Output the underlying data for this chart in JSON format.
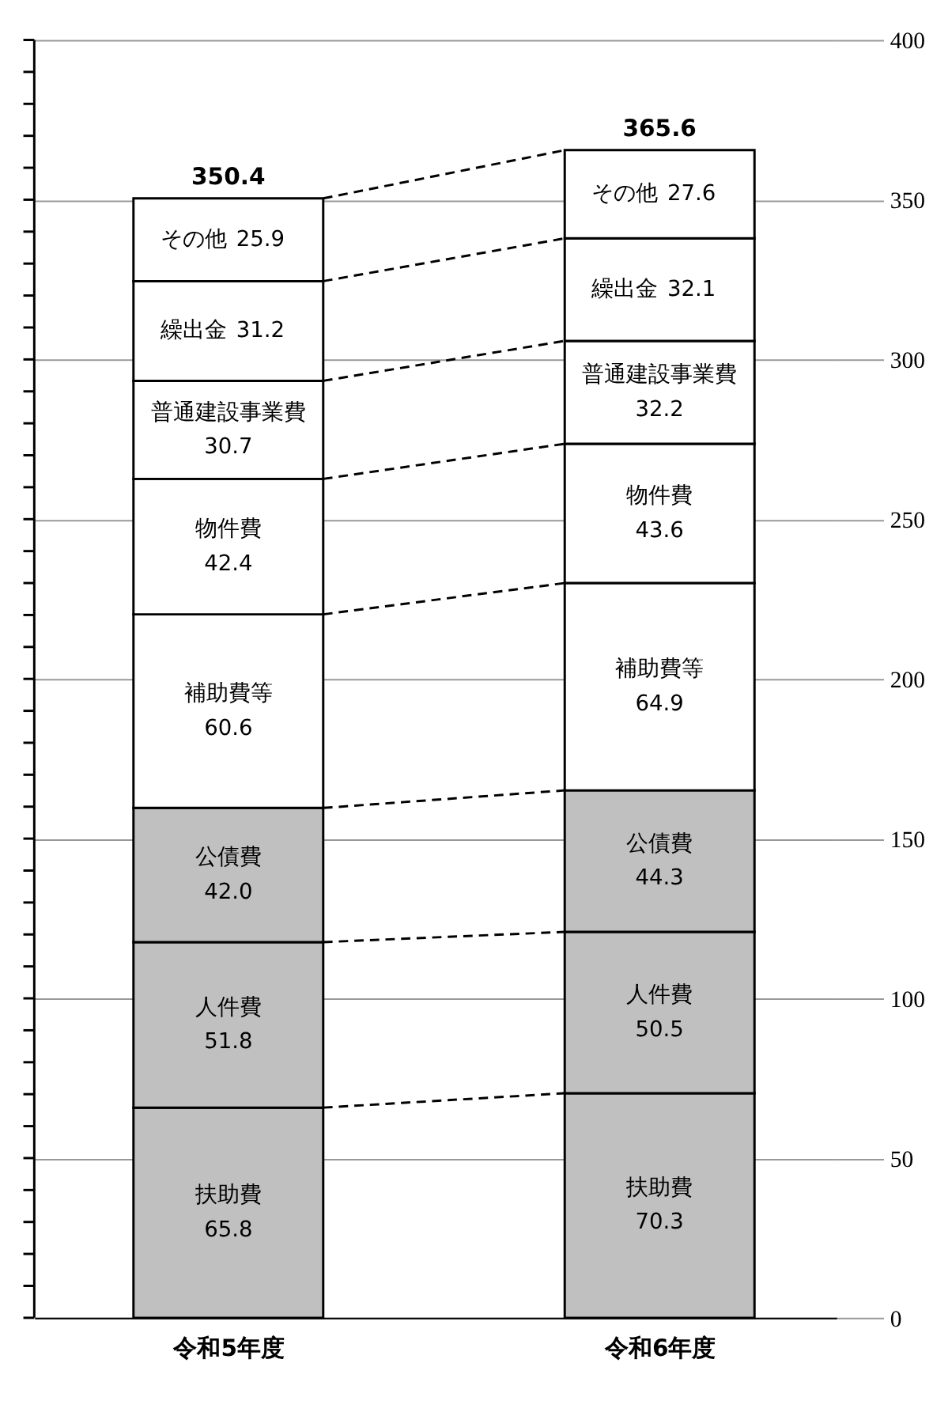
{
  "chart_data": {
    "type": "bar",
    "stacked": true,
    "grid": "y",
    "categories": [
      "令和5年度",
      "令和6年度"
    ],
    "series": [
      {
        "name": "扶助費",
        "color": "#c0c0c0",
        "values": [
          65.8,
          70.3
        ],
        "value_labels": [
          "65.8",
          "70.3"
        ]
      },
      {
        "name": "人件費",
        "color": "#c0c0c0",
        "values": [
          51.8,
          50.5
        ],
        "value_labels": [
          "51.8",
          "50.5"
        ]
      },
      {
        "name": "公債費",
        "color": "#c0c0c0",
        "values": [
          42.0,
          44.3
        ],
        "value_labels": [
          "42.0",
          "44.3"
        ]
      },
      {
        "name": "補助費等",
        "color": "#ffffff",
        "values": [
          60.6,
          64.9
        ],
        "value_labels": [
          "60.6",
          "64.9"
        ]
      },
      {
        "name": "物件費",
        "color": "#ffffff",
        "values": [
          42.4,
          43.6
        ],
        "value_labels": [
          "42.4",
          "43.6"
        ]
      },
      {
        "name": "普通建設事業費",
        "color": "#ffffff",
        "values": [
          30.7,
          32.2
        ],
        "value_labels": [
          "30.7",
          "32.2"
        ]
      },
      {
        "name": "繰出金",
        "color": "#ffffff",
        "values": [
          31.2,
          32.1
        ],
        "value_labels": [
          "31.2",
          "32.1"
        ]
      },
      {
        "name": "その他",
        "color": "#ffffff",
        "values": [
          25.9,
          27.6
        ],
        "value_labels": [
          "25.9",
          "27.6"
        ]
      }
    ],
    "totals": [
      "350.4",
      "365.6"
    ],
    "ylim": [
      0,
      400
    ],
    "yticks": [
      0,
      {
        "value": 10,
        "label": null
      },
      {
        "value": 20,
        "label": null
      },
      {
        "value": 30,
        "label": null
      },
      {
        "value": 40,
        "label": null
      },
      50,
      {
        "value": 60,
        "label": null
      },
      {
        "value": 70,
        "label": null
      },
      {
        "value": 80,
        "label": null
      },
      {
        "value": 90,
        "label": null
      },
      100,
      {
        "value": 110,
        "label": null
      },
      {
        "value": 120,
        "label": null
      },
      {
        "value": 130,
        "label": null
      },
      {
        "value": 140,
        "label": null
      },
      150,
      {
        "value": 160,
        "label": null
      },
      {
        "value": 170,
        "label": null
      },
      {
        "value": 180,
        "label": null
      },
      {
        "value": 190,
        "label": null
      },
      200,
      {
        "value": 210,
        "label": null
      },
      {
        "value": 220,
        "label": null
      },
      {
        "value": 230,
        "label": null
      },
      {
        "value": 240,
        "label": null
      },
      250,
      {
        "value": 260,
        "label": null
      },
      {
        "value": 270,
        "label": null
      },
      {
        "value": 280,
        "label": null
      },
      {
        "value": 290,
        "label": null
      },
      300,
      {
        "value": 310,
        "label": null
      },
      {
        "value": 320,
        "label": null
      },
      {
        "value": 330,
        "label": null
      },
      {
        "value": 340,
        "label": null
      },
      350,
      {
        "value": 360,
        "label": null
      },
      {
        "value": 370,
        "label": null
      },
      {
        "value": 380,
        "label": null
      },
      {
        "value": 390,
        "label": null
      },
      400
    ]
  }
}
